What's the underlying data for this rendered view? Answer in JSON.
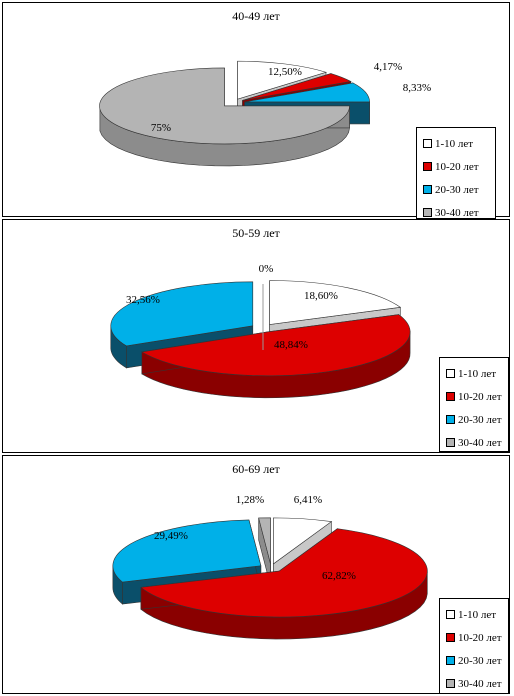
{
  "colors": {
    "cat1": "#ffffff",
    "cat2": "#dd0000",
    "cat3": "#00b0e8",
    "cat4": "#b4b4b4"
  },
  "legend_labels": [
    "1-10 лет",
    "10-20 лет",
    "20-30 лет",
    "30-40 лет"
  ],
  "chart_data": [
    {
      "type": "pie",
      "title": "40-49 лет",
      "categories": [
        "1-10 лет",
        "10-20 лет",
        "20-30 лет",
        "30-40 лет"
      ],
      "values": [
        12.5,
        4.17,
        8.33,
        75
      ],
      "labels": [
        "12,50%",
        "4,17%",
        "8,33%",
        "75%"
      ],
      "legend_position": "right"
    },
    {
      "type": "pie",
      "title": "50-59 лет",
      "categories": [
        "1-10 лет",
        "10-20 лет",
        "20-30 лет",
        "30-40 лет"
      ],
      "values": [
        18.6,
        48.84,
        32.56,
        0
      ],
      "labels": [
        "18,60%",
        "48,84%",
        "32,56%",
        "0%"
      ],
      "legend_position": "right"
    },
    {
      "type": "pie",
      "title": "60-69 лет",
      "categories": [
        "1-10 лет",
        "10-20 лет",
        "20-30 лет",
        "30-40 лет"
      ],
      "values": [
        6.41,
        62.82,
        29.49,
        1.28
      ],
      "labels": [
        "6,41%",
        "62,82%",
        "29,49%",
        "1,28%"
      ],
      "legend_position": "right"
    }
  ]
}
